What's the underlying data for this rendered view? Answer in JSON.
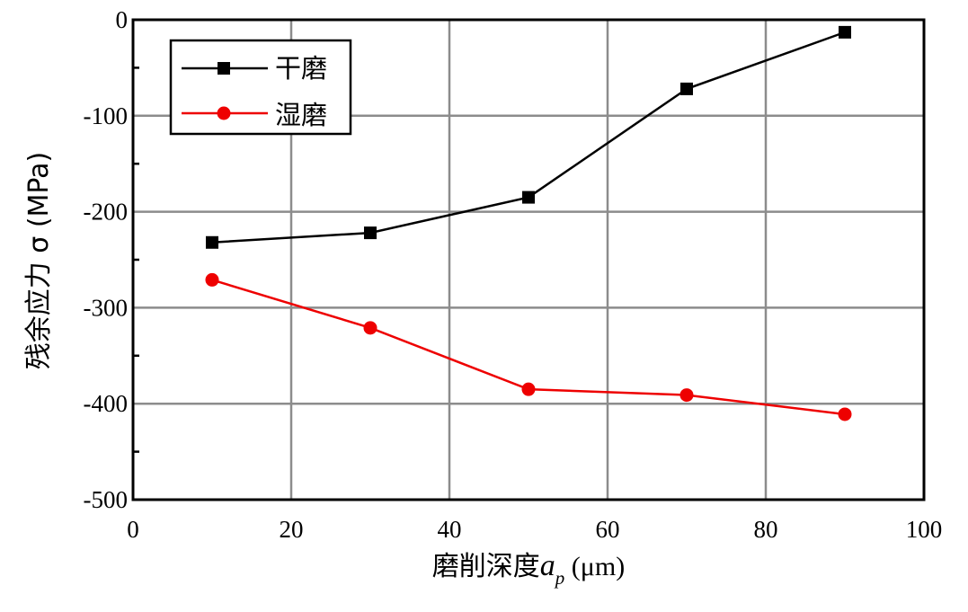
{
  "chart_data": {
    "type": "line",
    "xlabel": "磨削深度",
    "xlabel_var": "a",
    "xlabel_sub": "p",
    "xlabel_unit": " (μm)",
    "ylabel": "残余应力 σ (MPa)",
    "xlim": [
      0,
      100
    ],
    "ylim": [
      -500,
      0
    ],
    "x_ticks": [
      0,
      20,
      40,
      60,
      80,
      100
    ],
    "y_ticks": [
      0,
      -100,
      -200,
      -300,
      -400,
      -500
    ],
    "grid": true,
    "legend_position": "top-left",
    "series": [
      {
        "name": "干磨",
        "color": "#000000",
        "marker": "square",
        "x": [
          10,
          30,
          50,
          70,
          90
        ],
        "y": [
          -232,
          -222,
          -185,
          -72,
          -13
        ]
      },
      {
        "name": "湿磨",
        "color": "#ee0000",
        "marker": "circle",
        "x": [
          10,
          30,
          50,
          70,
          90
        ],
        "y": [
          -271,
          -321,
          -385,
          -391,
          -411
        ]
      }
    ]
  }
}
